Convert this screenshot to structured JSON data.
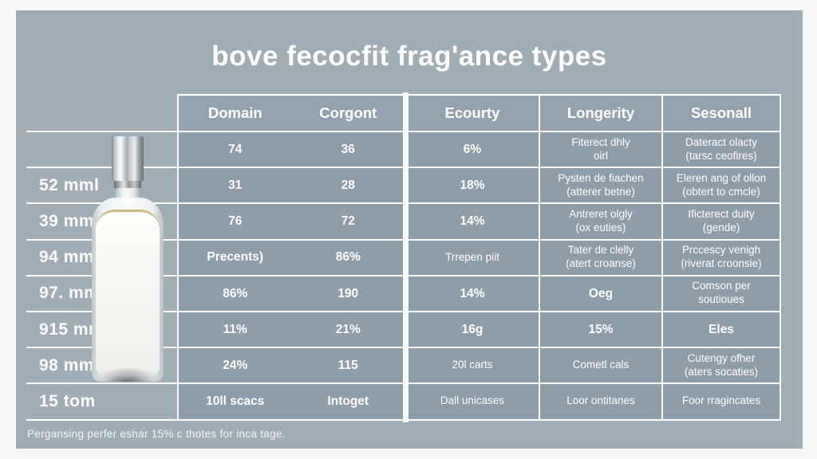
{
  "colors": {
    "page": "#f6f7f7",
    "panel": "#a0adb5",
    "cell": "#8e9da8",
    "cell_header": "#93a2ac",
    "line": "#ffffff",
    "text": "#ffffff",
    "liquid_line": "#cdb97f"
  },
  "images": {
    "bottle": "clear-glass-perfume-bottle-with-silver-cap"
  },
  "chart_data": {
    "type": "table",
    "title": "bove fecocfit frag'ance types",
    "columns": [
      "Domain",
      "Corgont",
      "Ecourty",
      "Longerity",
      "Sesonall"
    ],
    "row_labels": [
      "",
      "52 mml",
      "39 mm",
      "94 mm",
      "97. mm",
      "915 mm",
      "98 mm",
      "15 tom"
    ],
    "rows": [
      [
        "74",
        "36",
        "6%",
        "Fiterect dhly\noirl",
        "Dateract olacty\n(tarsc ceofires)"
      ],
      [
        "31",
        "28",
        "18%",
        "Pysten de fiachen\n(atterer betne)",
        "Eleren ang of ollon\n(obtert to cmcle)"
      ],
      [
        "76",
        "72",
        "14%",
        "Antreret olgly\n(ox euties)",
        "Ificterect duity\n(gende)"
      ],
      [
        "Precents)",
        "86%",
        "Trrepen piit",
        "Tater de clelly\n(atert croanse)",
        "Prccescy venigh\n(riverat croonsie)"
      ],
      [
        "86%",
        "190",
        "14%",
        "Oeg",
        "Comson per soutioues"
      ],
      [
        "11%",
        "21%",
        "16g",
        "15%",
        "Eles"
      ],
      [
        "24%",
        "115",
        "20l carts",
        "Cometl cals",
        "Cutengy ofher\n(aters socaties)"
      ],
      [
        "10ll scacs",
        "Intoget",
        "Dall unicases",
        "Loor ontitanes",
        "Foor rragincates"
      ]
    ],
    "footnote": "Pergansing perfer eshar 15% c thotes for inca tage.",
    "legend_position": "none",
    "grid": true
  }
}
